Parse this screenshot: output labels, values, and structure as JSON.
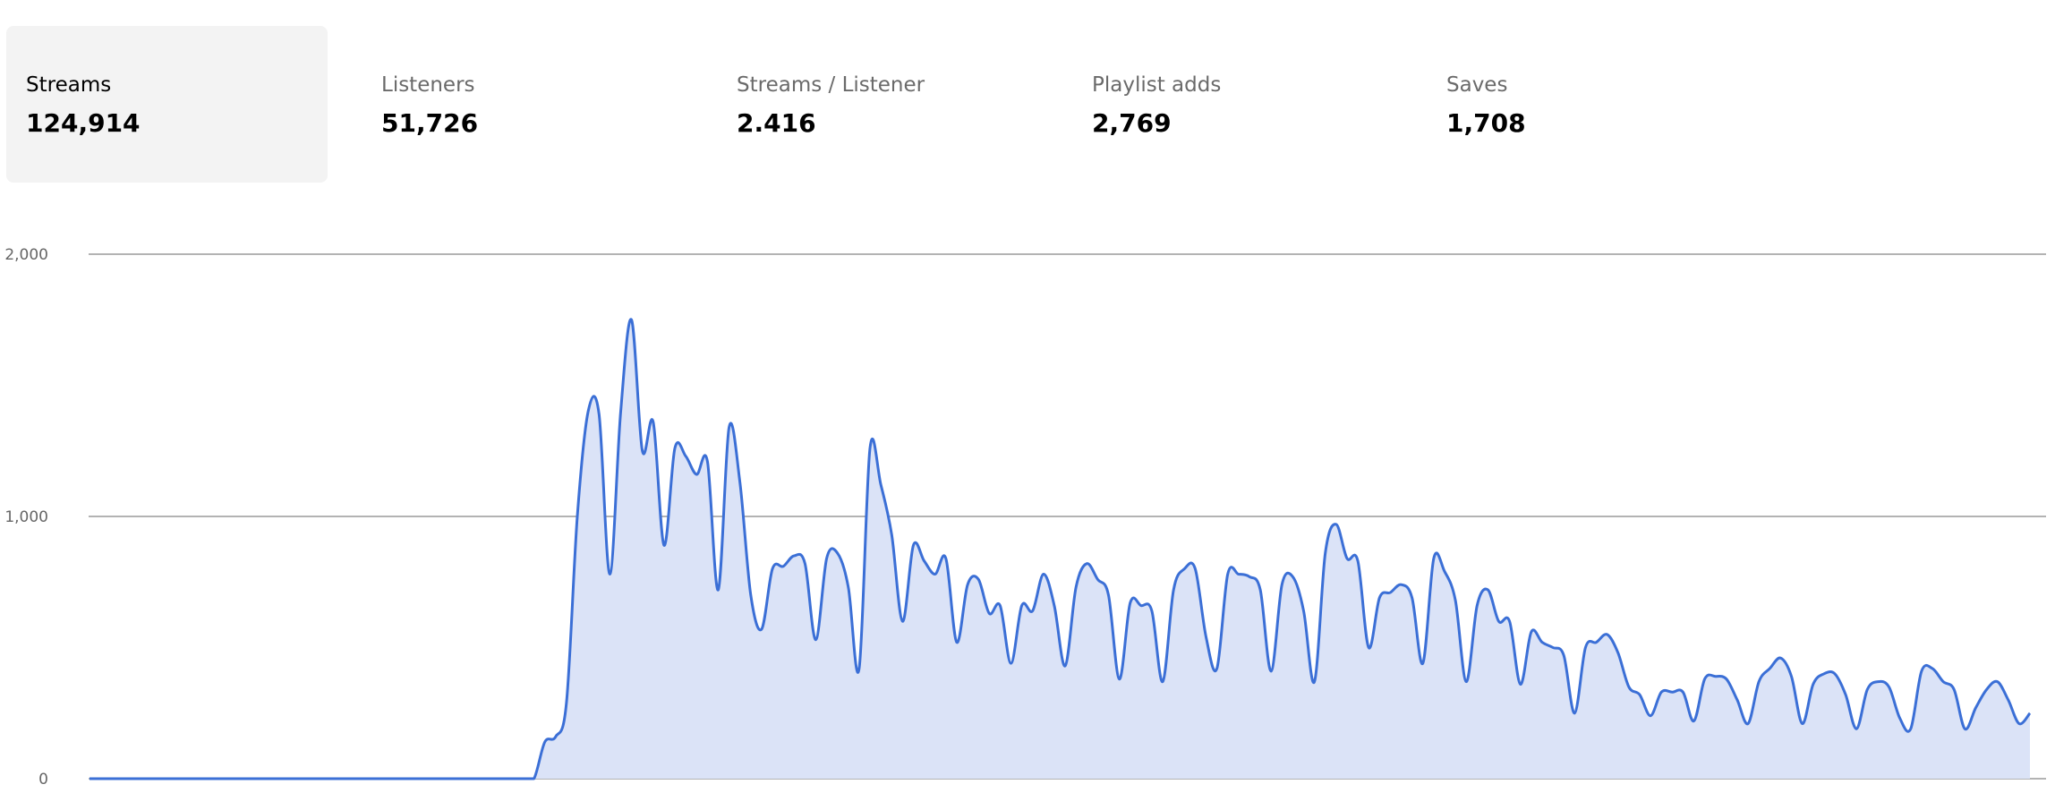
{
  "tabs": [
    {
      "label": "Streams",
      "value": "124,914",
      "active": true
    },
    {
      "label": "Listeners",
      "value": "51,726",
      "active": false
    },
    {
      "label": "Streams / Listener",
      "value": "2.416",
      "active": false
    },
    {
      "label": "Playlist adds",
      "value": "2,769",
      "active": false
    },
    {
      "label": "Saves",
      "value": "1,708",
      "active": false
    }
  ],
  "colors": {
    "line": "#3b6fd6",
    "fill": "#dbe3f7",
    "grid": "#9a9a9a",
    "active_tab_bg": "#f3f3f3"
  },
  "chart_data": {
    "type": "area",
    "yticks": [
      "0",
      "1,000",
      "2,000"
    ],
    "ylim": [
      0,
      2000
    ],
    "grid": true,
    "series": [
      {
        "values": [
          0,
          0,
          0,
          0,
          0,
          0,
          0,
          0,
          0,
          0,
          0,
          0,
          0,
          0,
          0,
          0,
          0,
          0,
          0,
          0,
          0,
          0,
          0,
          0,
          0,
          0,
          0,
          0,
          0,
          0,
          0,
          0,
          0,
          0,
          0,
          0,
          0,
          0,
          0,
          0,
          0,
          0,
          140,
          160,
          290,
          1000,
          1400,
          1390,
          780,
          1400,
          1750,
          1250,
          1360,
          890,
          1260,
          1230,
          1160,
          1210,
          720,
          1340,
          1130,
          700,
          570,
          800,
          810,
          850,
          820,
          530,
          840,
          860,
          730,
          420,
          1260,
          1120,
          930,
          600,
          890,
          830,
          780,
          840,
          520,
          740,
          760,
          630,
          660,
          440,
          660,
          640,
          780,
          660,
          430,
          730,
          820,
          760,
          700,
          380,
          670,
          660,
          640,
          370,
          720,
          800,
          800,
          540,
          420,
          780,
          780,
          770,
          720,
          410,
          740,
          770,
          640,
          370,
          860,
          970,
          840,
          830,
          500,
          690,
          710,
          740,
          690,
          440,
          840,
          790,
          680,
          370,
          660,
          720,
          600,
          600,
          360,
          560,
          520,
          500,
          470,
          250,
          500,
          520,
          550,
          480,
          350,
          320,
          240,
          330,
          330,
          330,
          220,
          380,
          390,
          380,
          300,
          210,
          370,
          420,
          460,
          390,
          210,
          360,
          400,
          400,
          320,
          190,
          340,
          370,
          350,
          230,
          190,
          410,
          420,
          370,
          340,
          190,
          270,
          340,
          370,
          300,
          210,
          250
        ]
      }
    ]
  }
}
